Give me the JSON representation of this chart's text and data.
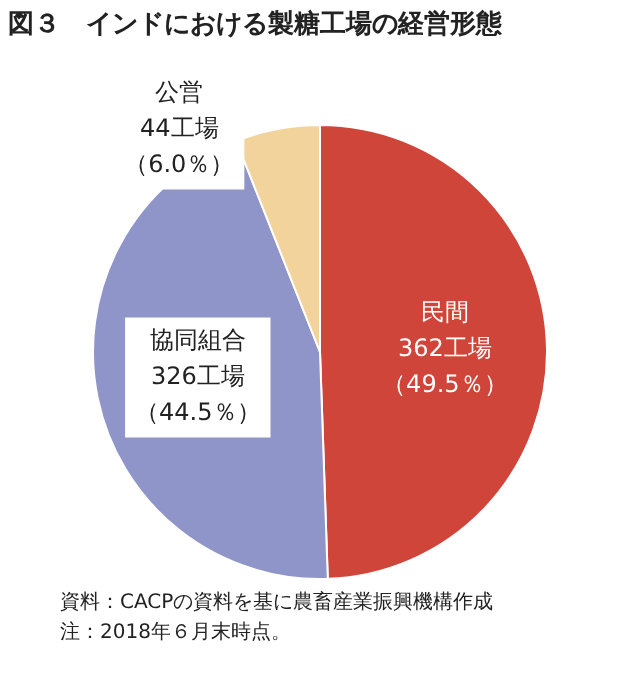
{
  "chart_data": {
    "type": "pie",
    "title": "図３　インドにおける製糖工場の経営形態",
    "categories": [
      "民間",
      "協同組合",
      "公営"
    ],
    "values": [
      362,
      326,
      44
    ],
    "value_labels": [
      "362工場（49.5％）",
      "326工場（44.5％）",
      "44工場（6.0％）"
    ],
    "colors": [
      "#d0453a",
      "#8f95c8",
      "#f3d39c"
    ],
    "legend": false,
    "annotations": [
      "資料：CACPの資料を基に農畜産業振興機構作成",
      "注：2018年６月末時点。"
    ]
  }
}
